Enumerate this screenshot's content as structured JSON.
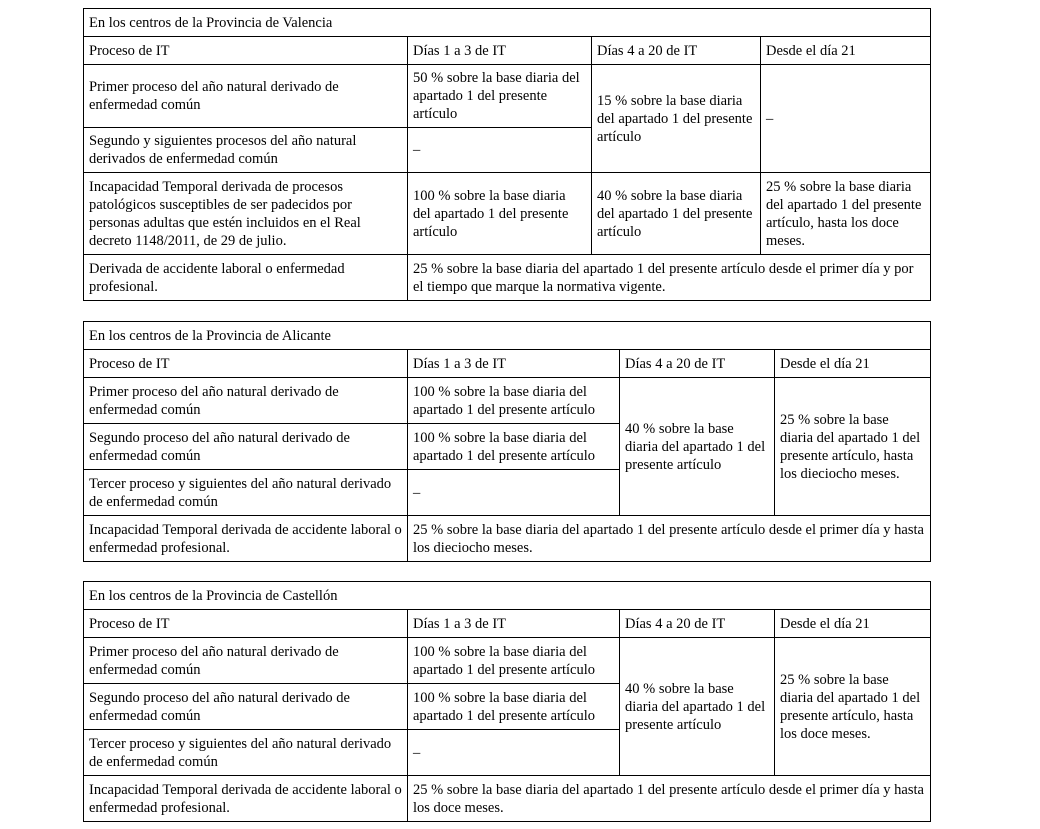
{
  "tables": [
    {
      "title": "En los centros de la Provincia de Valencia",
      "headers": [
        "Proceso de IT",
        "Días 1 a 3 de IT",
        "Días 4 a 20 de IT",
        "Desde el día 21"
      ],
      "rows": [
        {
          "label": "Primer proceso del año natural derivado de enfermedad común",
          "d1_3": "50 % sobre la base diaria del apartado 1 del presente artículo",
          "d4_20": "15 % sobre la base diaria del apartado 1 del presente artículo",
          "d21": "–"
        },
        {
          "label": "Segundo y siguientes procesos del año natural derivados de enfermedad común",
          "d1_3": "–"
        },
        {
          "label": "Incapacidad Temporal derivada de procesos patológicos susceptibles de ser padecidos por personas adultas que estén incluidos en el Real decreto 1148/2011, de 29 de julio.",
          "d1_3": "100 % sobre la base diaria del apartado 1 del presente artículo",
          "d4_20": "40 % sobre la base diaria del apartado 1 del presente artículo",
          "d21": "25 % sobre la base diaria del apartado 1 del presente artículo, hasta los doce meses."
        },
        {
          "label": "Derivada de accidente laboral o enfermedad profesional.",
          "all": "25 % sobre la base diaria del apartado 1 del presente artículo desde el primer día y por el tiempo que marque la normativa vigente."
        }
      ]
    },
    {
      "title": "En los centros de la Provincia de Alicante",
      "headers": [
        "Proceso de IT",
        "Días 1 a 3 de IT",
        "Días 4 a 20 de IT",
        "Desde el día 21"
      ],
      "rows": [
        {
          "label": "Primer proceso del año natural derivado de enfermedad común",
          "d1_3": "100 % sobre la base diaria del apartado 1 del presente artículo",
          "d4_20": "40 % sobre la base diaria del apartado 1 del presente artículo",
          "d21": "25 % sobre la base diaria del apartado 1 del presente artículo, hasta los dieciocho meses."
        },
        {
          "label": "Segundo proceso del año natural derivado de enfermedad común",
          "d1_3": "100 % sobre la base diaria del apartado 1 del presente artículo"
        },
        {
          "label": "Tercer proceso y siguientes del año natural derivado de enfermedad común",
          "d1_3": "–"
        },
        {
          "label": "Incapacidad Temporal derivada de accidente laboral o enfermedad profesional.",
          "all": "25 % sobre la base diaria del apartado 1 del presente artículo desde el primer día y hasta los dieciocho meses."
        }
      ]
    },
    {
      "title": "En los centros de la Provincia de Castellón",
      "headers": [
        "Proceso de IT",
        "Días 1 a 3 de IT",
        "Días 4 a 20 de IT",
        "Desde el día 21"
      ],
      "rows": [
        {
          "label": "Primer proceso del año natural derivado de enfermedad común",
          "d1_3": "100 % sobre la base diaria del apartado 1 del presente artículo",
          "d4_20": "40 % sobre la base diaria del apartado 1 del presente artículo",
          "d21": "25 % sobre la base diaria del apartado 1 del presente artículo, hasta los doce meses."
        },
        {
          "label": "Segundo proceso del año natural derivado de enfermedad común",
          "d1_3": "100 % sobre la base diaria del apartado 1 del presente artículo"
        },
        {
          "label": "Tercer proceso y siguientes del año natural derivado de enfermedad común",
          "d1_3": "–"
        },
        {
          "label": "Incapacidad Temporal derivada de accidente laboral o enfermedad profesional.",
          "all": "25 % sobre la base diaria del apartado 1 del presente artículo desde el primer día y hasta los doce meses."
        }
      ]
    }
  ]
}
